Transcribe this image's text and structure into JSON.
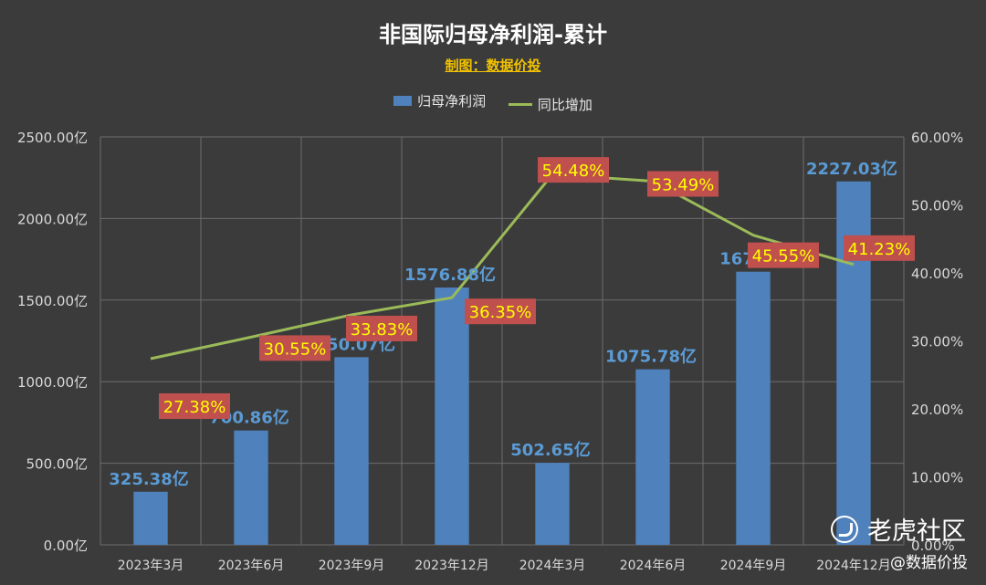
{
  "title": "非国际归母净利润-累计",
  "subtitle": "制图：数据价投",
  "watermark": {
    "brand": "老虎社区",
    "author": "@数据价投"
  },
  "colors": {
    "bar": "#4f81bd",
    "line": "#9bbb59",
    "bar_label": "#5b9bd5",
    "pct_label_bg": "#c0504d",
    "pct_label_text": "#ffff00",
    "grid": "#6d6d6d",
    "axis_text": "#d9d9d9"
  },
  "chart_data": {
    "type": "bar",
    "categories": [
      "2023年3月",
      "2023年6月",
      "2023年9月",
      "2023年12月",
      "2024年3月",
      "2024年6月",
      "2024年9月",
      "2024年12月"
    ],
    "series": [
      {
        "name": "归母净利润",
        "type": "bar",
        "axis": "left",
        "values": [
          325.38,
          700.86,
          1150.07,
          1576.88,
          502.65,
          1075.78,
          1673.9,
          2227.03
        ],
        "labels": [
          "325.38亿",
          "700.86亿",
          "1150.07亿",
          "1576.88亿",
          "502.65亿",
          "1075.78亿",
          "1673.9",
          "2227.03亿"
        ]
      },
      {
        "name": "同比增加",
        "type": "line",
        "axis": "right",
        "values": [
          27.38,
          30.55,
          33.83,
          36.35,
          54.48,
          53.49,
          45.55,
          41.23
        ],
        "labels": [
          "27.38%",
          "30.55%",
          "33.83%",
          "36.35%",
          "54.48%",
          "53.49%",
          "45.55%",
          "41.23%"
        ]
      }
    ],
    "y_left": {
      "min": 0,
      "max": 2500,
      "ticks": [
        "0.00亿",
        "500.00亿",
        "1000.00亿",
        "1500.00亿",
        "2000.00亿",
        "2500.00亿"
      ]
    },
    "y_right": {
      "min": 0,
      "max": 60,
      "ticks": [
        "0.00%",
        "10.00%",
        "20.00%",
        "30.00%",
        "40.00%",
        "50.00%",
        "60.00%"
      ]
    },
    "grid": true,
    "legend": "top"
  }
}
